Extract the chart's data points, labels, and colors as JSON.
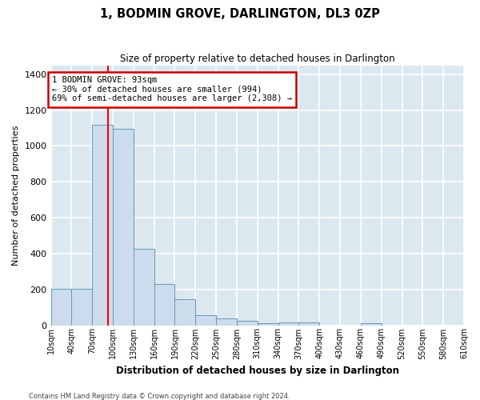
{
  "title": "1, BODMIN GROVE, DARLINGTON, DL3 0ZP",
  "subtitle": "Size of property relative to detached houses in Darlington",
  "xlabel": "Distribution of detached houses by size in Darlington",
  "ylabel": "Number of detached properties",
  "bar_color": "#ccdcec",
  "bar_edge_color": "#6699bb",
  "background_color": "#dce8f0",
  "grid_color": "#ffffff",
  "red_line_x": 93,
  "annotation_text": "1 BODMIN GROVE: 93sqm\n← 30% of detached houses are smaller (994)\n69% of semi-detached houses are larger (2,308) →",
  "annotation_box_color": "#ffffff",
  "annotation_edge_color": "#cc0000",
  "footer_line1": "Contains HM Land Registry data © Crown copyright and database right 2024.",
  "bin_left_edges": [
    10,
    40,
    70,
    100,
    130,
    160,
    190,
    220,
    250,
    280,
    310,
    340,
    370,
    400,
    430,
    460,
    490,
    520,
    550,
    580
  ],
  "bin_counts": [
    205,
    205,
    1120,
    1095,
    425,
    230,
    145,
    55,
    38,
    25,
    10,
    15,
    15,
    0,
    0,
    10,
    0,
    0,
    0,
    0
  ],
  "bin_width": 30,
  "xlim_left": 10,
  "xlim_right": 610,
  "ylim": [
    0,
    1450
  ],
  "yticks": [
    0,
    200,
    400,
    600,
    800,
    1000,
    1200,
    1400
  ],
  "tick_positions": [
    10,
    40,
    70,
    100,
    130,
    160,
    190,
    220,
    250,
    280,
    310,
    340,
    370,
    400,
    430,
    460,
    490,
    520,
    550,
    580,
    610
  ],
  "tick_labels": [
    "10sqm",
    "40sqm",
    "70sqm",
    "100sqm",
    "130sqm",
    "160sqm",
    "190sqm",
    "220sqm",
    "250sqm",
    "280sqm",
    "310sqm",
    "340sqm",
    "370sqm",
    "400sqm",
    "430sqm",
    "460sqm",
    "490sqm",
    "520sqm",
    "550sqm",
    "580sqm",
    "610sqm"
  ]
}
